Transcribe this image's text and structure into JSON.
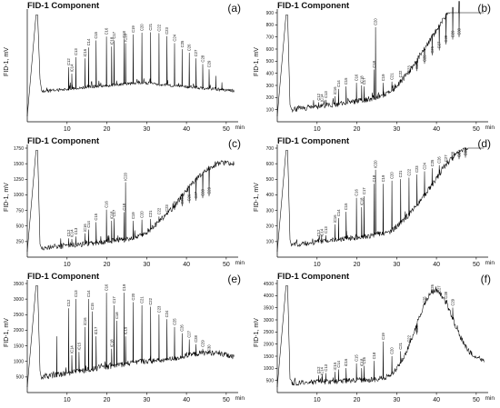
{
  "figure": {
    "x_unit": "min",
    "y_label": "FID-1, mV"
  },
  "chart_data": [
    {
      "panel": "(a)",
      "type": "line",
      "title": "FID-1 Component",
      "ylabel": "FID-1, mV",
      "xlim": [
        0,
        53
      ],
      "ylim": [
        0,
        2500
      ],
      "xticks": [
        10,
        20,
        30,
        40,
        50
      ],
      "yticks": [],
      "baseline": {
        "start": 700,
        "mid": 900,
        "end": 700
      },
      "peaks": [
        {
          "x": 10.4,
          "y": 1250,
          "label": "C12"
        },
        {
          "x": 11.2,
          "y": 1100,
          "label": "iC14"
        },
        {
          "x": 12.2,
          "y": 1480,
          "label": "C13"
        },
        {
          "x": 14.5,
          "y": 1450,
          "label": "iC16"
        },
        {
          "x": 15.4,
          "y": 1700,
          "label": "C14"
        },
        {
          "x": 17.3,
          "y": 1860,
          "label": "C15"
        },
        {
          "x": 19.9,
          "y": 1950,
          "label": "C16"
        },
        {
          "x": 21.2,
          "y": 1720,
          "label": "iC18"
        },
        {
          "x": 21.8,
          "y": 1860,
          "label": "C17"
        },
        {
          "x": 24.3,
          "y": 1880,
          "label": "C18"
        },
        {
          "x": 24.7,
          "y": 1800,
          "label": "iC20"
        },
        {
          "x": 26.6,
          "y": 2000,
          "label": "C19"
        },
        {
          "x": 28.8,
          "y": 2040,
          "label": "C20"
        },
        {
          "x": 31.0,
          "y": 2050,
          "label": "C21"
        },
        {
          "x": 33.1,
          "y": 2030,
          "label": "C22"
        },
        {
          "x": 35.1,
          "y": 1960,
          "label": "C23"
        },
        {
          "x": 37.0,
          "y": 1800,
          "label": "C24"
        },
        {
          "x": 38.9,
          "y": 1660,
          "label": "C25"
        },
        {
          "x": 40.7,
          "y": 1580,
          "label": "C26"
        },
        {
          "x": 42.4,
          "y": 1450,
          "label": "C27"
        },
        {
          "x": 44.1,
          "y": 1320,
          "label": "C28"
        },
        {
          "x": 45.7,
          "y": 1200,
          "label": "C29"
        },
        {
          "x": 47.4,
          "y": 1050,
          "label": ""
        },
        {
          "x": 48.9,
          "y": 900,
          "label": ""
        }
      ]
    },
    {
      "panel": "(b)",
      "type": "line",
      "title": "FID-1 Component",
      "ylabel": "FID-1, mV",
      "xlim": [
        0,
        53
      ],
      "ylim": [
        0,
        900
      ],
      "xticks": [
        10,
        20,
        30,
        40,
        50
      ],
      "yticks": [
        100,
        200,
        300,
        400,
        500,
        600,
        700,
        800,
        900
      ],
      "baseline": {
        "start": 100,
        "mid": 200,
        "end": 600
      },
      "hump": {
        "center": 47,
        "width": 12,
        "height": 520
      },
      "peaks": [
        {
          "x": 10.4,
          "y": 160,
          "label": "C12"
        },
        {
          "x": 11.2,
          "y": 150,
          "label": "iC14"
        },
        {
          "x": 12.2,
          "y": 180,
          "label": "C13"
        },
        {
          "x": 14.5,
          "y": 210,
          "label": "iC16"
        },
        {
          "x": 15.4,
          "y": 270,
          "label": "C14"
        },
        {
          "x": 17.3,
          "y": 290,
          "label": "C15"
        },
        {
          "x": 19.9,
          "y": 320,
          "label": "C16"
        },
        {
          "x": 21.2,
          "y": 300,
          "label": "iC18"
        },
        {
          "x": 21.8,
          "y": 290,
          "label": "C17"
        },
        {
          "x": 24.3,
          "y": 430,
          "label": "C18"
        },
        {
          "x": 24.7,
          "y": 780,
          "label": "C20"
        },
        {
          "x": 26.6,
          "y": 320,
          "label": "C19"
        },
        {
          "x": 28.8,
          "y": 330,
          "label": "C21"
        },
        {
          "x": 31.0,
          "y": 350,
          "label": "C22"
        },
        {
          "x": 33.1,
          "y": 390,
          "label": "C23"
        },
        {
          "x": 35.1,
          "y": 420,
          "label": "C24"
        },
        {
          "x": 37.0,
          "y": 480,
          "label": "C25"
        },
        {
          "x": 38.9,
          "y": 550,
          "label": "C26"
        },
        {
          "x": 40.7,
          "y": 590,
          "label": "C27"
        },
        {
          "x": 42.4,
          "y": 640,
          "label": "C28"
        },
        {
          "x": 44.1,
          "y": 680,
          "label": "C29"
        },
        {
          "x": 45.7,
          "y": 700,
          "label": "C30"
        }
      ]
    },
    {
      "panel": "(c)",
      "type": "line",
      "title": "FID-1 Component",
      "ylabel": "FID-1, mV",
      "xlim": [
        0,
        53
      ],
      "ylim": [
        0,
        1750
      ],
      "xticks": [
        10,
        20,
        30,
        40,
        50
      ],
      "yticks": [
        250,
        500,
        750,
        1000,
        1250,
        1500,
        1750
      ],
      "baseline": {
        "start": 150,
        "mid": 300,
        "end": 1000
      },
      "hump": {
        "center": 47,
        "width": 11,
        "height": 650
      },
      "peaks": [
        {
          "x": 10.4,
          "y": 300,
          "label": "C12"
        },
        {
          "x": 11.2,
          "y": 290,
          "label": "iC14"
        },
        {
          "x": 12.2,
          "y": 330,
          "label": "C13"
        },
        {
          "x": 14.5,
          "y": 380,
          "label": "iC16"
        },
        {
          "x": 15.4,
          "y": 440,
          "label": "C14"
        },
        {
          "x": 17.3,
          "y": 560,
          "label": "C15"
        },
        {
          "x": 19.9,
          "y": 760,
          "label": "C16"
        },
        {
          "x": 21.2,
          "y": 580,
          "label": "iC18"
        },
        {
          "x": 21.8,
          "y": 620,
          "label": "C17"
        },
        {
          "x": 24.3,
          "y": 720,
          "label": "C18"
        },
        {
          "x": 24.7,
          "y": 1200,
          "label": "iC20"
        },
        {
          "x": 26.6,
          "y": 580,
          "label": "C19"
        },
        {
          "x": 28.8,
          "y": 600,
          "label": "C20"
        },
        {
          "x": 31.0,
          "y": 610,
          "label": "C21"
        },
        {
          "x": 33.1,
          "y": 650,
          "label": "C22"
        },
        {
          "x": 35.1,
          "y": 700,
          "label": "C23"
        },
        {
          "x": 37.0,
          "y": 760,
          "label": "C24"
        },
        {
          "x": 38.9,
          "y": 820,
          "label": "C25"
        },
        {
          "x": 40.7,
          "y": 870,
          "label": "C26"
        },
        {
          "x": 42.4,
          "y": 910,
          "label": "C27"
        },
        {
          "x": 44.1,
          "y": 950,
          "label": "C28"
        },
        {
          "x": 45.7,
          "y": 980,
          "label": "C29"
        }
      ]
    },
    {
      "panel": "(d)",
      "type": "line",
      "title": "FID-1 Component",
      "ylabel": "FID-1, mV",
      "xlim": [
        0,
        53
      ],
      "ylim": [
        0,
        700
      ],
      "xticks": [
        10,
        20,
        30,
        40,
        50
      ],
      "yticks": [
        100,
        200,
        300,
        400,
        500,
        600,
        700
      ],
      "baseline": {
        "start": 80,
        "mid": 150,
        "end": 480
      },
      "hump": {
        "center": 47,
        "width": 11,
        "height": 300
      },
      "peaks": [
        {
          "x": 10.4,
          "y": 120,
          "label": "C12"
        },
        {
          "x": 11.2,
          "y": 120,
          "label": "iC14"
        },
        {
          "x": 12.2,
          "y": 140,
          "label": "C13"
        },
        {
          "x": 14.5,
          "y": 210,
          "label": "iC16"
        },
        {
          "x": 15.4,
          "y": 250,
          "label": "C14"
        },
        {
          "x": 17.3,
          "y": 290,
          "label": "C15"
        },
        {
          "x": 19.9,
          "y": 380,
          "label": "C16"
        },
        {
          "x": 21.2,
          "y": 320,
          "label": "iC18"
        },
        {
          "x": 21.8,
          "y": 390,
          "label": "C17"
        },
        {
          "x": 24.3,
          "y": 470,
          "label": "C18"
        },
        {
          "x": 24.7,
          "y": 560,
          "label": "iC20"
        },
        {
          "x": 26.6,
          "y": 470,
          "label": "C19"
        },
        {
          "x": 28.8,
          "y": 490,
          "label": "C20"
        },
        {
          "x": 31.0,
          "y": 500,
          "label": "C21"
        },
        {
          "x": 33.1,
          "y": 510,
          "label": "C22"
        },
        {
          "x": 35.1,
          "y": 530,
          "label": "C23"
        },
        {
          "x": 37.0,
          "y": 550,
          "label": "C24"
        },
        {
          "x": 38.9,
          "y": 570,
          "label": "C25"
        },
        {
          "x": 40.7,
          "y": 590,
          "label": "C26"
        },
        {
          "x": 42.4,
          "y": 600,
          "label": "C27"
        },
        {
          "x": 44.1,
          "y": 620,
          "label": "C28"
        },
        {
          "x": 45.7,
          "y": 630,
          "label": "C29"
        },
        {
          "x": 47.3,
          "y": 640,
          "label": "C30"
        }
      ]
    },
    {
      "panel": "(e)",
      "type": "line",
      "title": "FID-1 Component",
      "ylabel": "FID-1, mV",
      "xlim": [
        0,
        53
      ],
      "ylim": [
        0,
        3500
      ],
      "xticks": [
        10,
        20,
        30,
        40,
        50
      ],
      "yticks": [
        500,
        1000,
        1500,
        2000,
        2500,
        3000,
        3500
      ],
      "baseline": {
        "start": 500,
        "mid": 1000,
        "end": 900
      },
      "hump": {
        "center": 46,
        "width": 9,
        "height": 350
      },
      "peaks": [
        {
          "x": 7.4,
          "y": 1800,
          "label": ""
        },
        {
          "x": 10.4,
          "y": 2700,
          "label": "C12"
        },
        {
          "x": 11.2,
          "y": 1200,
          "label": "iC14"
        },
        {
          "x": 12.2,
          "y": 3000,
          "label": "C13"
        },
        {
          "x": 13.0,
          "y": 1300,
          "label": "iC15"
        },
        {
          "x": 14.5,
          "y": 2100,
          "label": "iC16"
        },
        {
          "x": 15.4,
          "y": 3000,
          "label": "C14"
        },
        {
          "x": 16.3,
          "y": 2600,
          "label": "C15"
        },
        {
          "x": 17.3,
          "y": 1800,
          "label": "iC17"
        },
        {
          "x": 19.9,
          "y": 3200,
          "label": "C16"
        },
        {
          "x": 21.2,
          "y": 1400,
          "label": "iC18"
        },
        {
          "x": 21.8,
          "y": 2800,
          "label": "C17"
        },
        {
          "x": 22.5,
          "y": 2300,
          "label": "C18"
        },
        {
          "x": 24.3,
          "y": 3200,
          "label": "C19"
        },
        {
          "x": 24.7,
          "y": 1800,
          "label": "iC19"
        },
        {
          "x": 26.6,
          "y": 2900,
          "label": "C20"
        },
        {
          "x": 28.8,
          "y": 2800,
          "label": "C21"
        },
        {
          "x": 31.0,
          "y": 2750,
          "label": "C22"
        },
        {
          "x": 33.1,
          "y": 2500,
          "label": "C23"
        },
        {
          "x": 35.1,
          "y": 2350,
          "label": "C24"
        },
        {
          "x": 37.0,
          "y": 2100,
          "label": "C25"
        },
        {
          "x": 38.9,
          "y": 1900,
          "label": "C26"
        },
        {
          "x": 40.7,
          "y": 1700,
          "label": "C27"
        },
        {
          "x": 42.4,
          "y": 1550,
          "label": "C28"
        },
        {
          "x": 44.1,
          "y": 1400,
          "label": "C29"
        },
        {
          "x": 45.7,
          "y": 1250,
          "label": "C30"
        }
      ]
    },
    {
      "panel": "(f)",
      "type": "line",
      "title": "FID-1 Component",
      "ylabel": "FID-1, mV",
      "xlim": [
        0,
        53
      ],
      "ylim": [
        0,
        4500
      ],
      "xticks": [
        10,
        20,
        30,
        40,
        50
      ],
      "yticks": [
        500,
        1000,
        1500,
        2000,
        2500,
        3000,
        3500,
        4000,
        4500
      ],
      "baseline": {
        "start": 400,
        "mid": 550,
        "end": 1300
      },
      "hump": {
        "center": 39.5,
        "width": 6.5,
        "height": 3300
      },
      "peaks": [
        {
          "x": 10.4,
          "y": 700,
          "label": "C12"
        },
        {
          "x": 11.2,
          "y": 650,
          "label": "iC14"
        },
        {
          "x": 12.2,
          "y": 800,
          "label": "C13"
        },
        {
          "x": 14.5,
          "y": 850,
          "label": "iC15"
        },
        {
          "x": 15.4,
          "y": 950,
          "label": "C14"
        },
        {
          "x": 17.3,
          "y": 1000,
          "label": "iC16"
        },
        {
          "x": 19.9,
          "y": 1200,
          "label": "C15"
        },
        {
          "x": 21.2,
          "y": 1000,
          "label": "iC18"
        },
        {
          "x": 21.8,
          "y": 1100,
          "label": "C16"
        },
        {
          "x": 24.3,
          "y": 1300,
          "label": "C18"
        },
        {
          "x": 26.6,
          "y": 2100,
          "label": "C19"
        },
        {
          "x": 28.8,
          "y": 1500,
          "label": "C20"
        },
        {
          "x": 31.0,
          "y": 1700,
          "label": "C21"
        },
        {
          "x": 33.1,
          "y": 2000,
          "label": "C22"
        },
        {
          "x": 35.1,
          "y": 2400,
          "label": "C24"
        },
        {
          "x": 37.0,
          "y": 3600,
          "label": "C25"
        },
        {
          "x": 38.9,
          "y": 4100,
          "label": "C26"
        },
        {
          "x": 40.7,
          "y": 4050,
          "label": "C27"
        },
        {
          "x": 42.4,
          "y": 3800,
          "label": "C28"
        },
        {
          "x": 44.1,
          "y": 3500,
          "label": "C29"
        }
      ]
    }
  ]
}
